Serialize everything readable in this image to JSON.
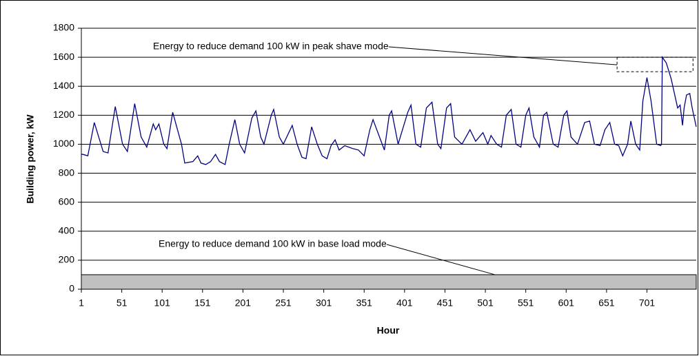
{
  "chart_data": {
    "type": "line",
    "x_label": "Hour",
    "y_label": "Building power, kW",
    "color": "#000080",
    "x": [
      1,
      3,
      9,
      17,
      28,
      34,
      43,
      52,
      58,
      67,
      75,
      82,
      90,
      93,
      97,
      103,
      107,
      114,
      120,
      125,
      129,
      139,
      145,
      149,
      155,
      161,
      167,
      172,
      179,
      184,
      191,
      197,
      203,
      212,
      217,
      223,
      227,
      236,
      239,
      246,
      251,
      262,
      268,
      274,
      279,
      286,
      293,
      299,
      305,
      310,
      315,
      320,
      327,
      337,
      344,
      351,
      358,
      362,
      370,
      376,
      382,
      385,
      393,
      405,
      409,
      415,
      421,
      428,
      435,
      442,
      446,
      453,
      458,
      463,
      472,
      482,
      489,
      498,
      504,
      508,
      515,
      521,
      527,
      533,
      539,
      545,
      551,
      555,
      561,
      568,
      573,
      577,
      585,
      591,
      598,
      602,
      607,
      615,
      624,
      630,
      636,
      643,
      649,
      655,
      661,
      666,
      671,
      677,
      681,
      687,
      692,
      696,
      701,
      706,
      713,
      718,
      719,
      720,
      725,
      731,
      739,
      742,
      745,
      747,
      750,
      754,
      757,
      762
    ],
    "values": [
      930,
      930,
      920,
      1150,
      950,
      940,
      1260,
      1000,
      950,
      1280,
      1050,
      980,
      1140,
      1100,
      1140,
      1000,
      970,
      1220,
      1100,
      1000,
      870,
      880,
      920,
      870,
      860,
      880,
      930,
      880,
      860,
      1000,
      1170,
      1000,
      940,
      1180,
      1230,
      1050,
      1000,
      1200,
      1240,
      1050,
      1000,
      1130,
      1000,
      910,
      900,
      1120,
      1000,
      920,
      900,
      990,
      1030,
      960,
      990,
      970,
      960,
      920,
      1100,
      1170,
      1050,
      960,
      1200,
      1230,
      1000,
      1220,
      1270,
      1000,
      980,
      1250,
      1290,
      1000,
      970,
      1250,
      1280,
      1050,
      1000,
      1100,
      1020,
      1080,
      1000,
      1060,
      1000,
      980,
      1200,
      1240,
      1000,
      980,
      1200,
      1250,
      1050,
      980,
      1200,
      1220,
      1000,
      980,
      1200,
      1230,
      1050,
      1000,
      1150,
      1160,
      1000,
      990,
      1100,
      1150,
      1000,
      990,
      920,
      1000,
      1160,
      1000,
      960,
      1300,
      1460,
      1300,
      1000,
      990,
      1000,
      1600,
      1560,
      1450,
      1250,
      1270,
      1130,
      1250,
      1340,
      1350,
      1250,
      1120
    ],
    "xlim": [
      1,
      762
    ],
    "xticks": [
      1,
      51,
      101,
      151,
      201,
      251,
      301,
      351,
      401,
      451,
      501,
      551,
      601,
      651,
      701
    ],
    "ylim": [
      0,
      1800
    ],
    "yticks": [
      0,
      200,
      400,
      600,
      800,
      1000,
      1200,
      1400,
      1600,
      1800
    ],
    "grid": true,
    "annotations": [
      {
        "text": "Energy to reduce demand 100 kW in peak shave mode",
        "x": [
          664,
          758
        ],
        "y": [
          1500,
          1600
        ]
      },
      {
        "text": "Energy to reduce demand 100 kW in base load mode",
        "y": [
          0,
          100
        ]
      }
    ]
  }
}
